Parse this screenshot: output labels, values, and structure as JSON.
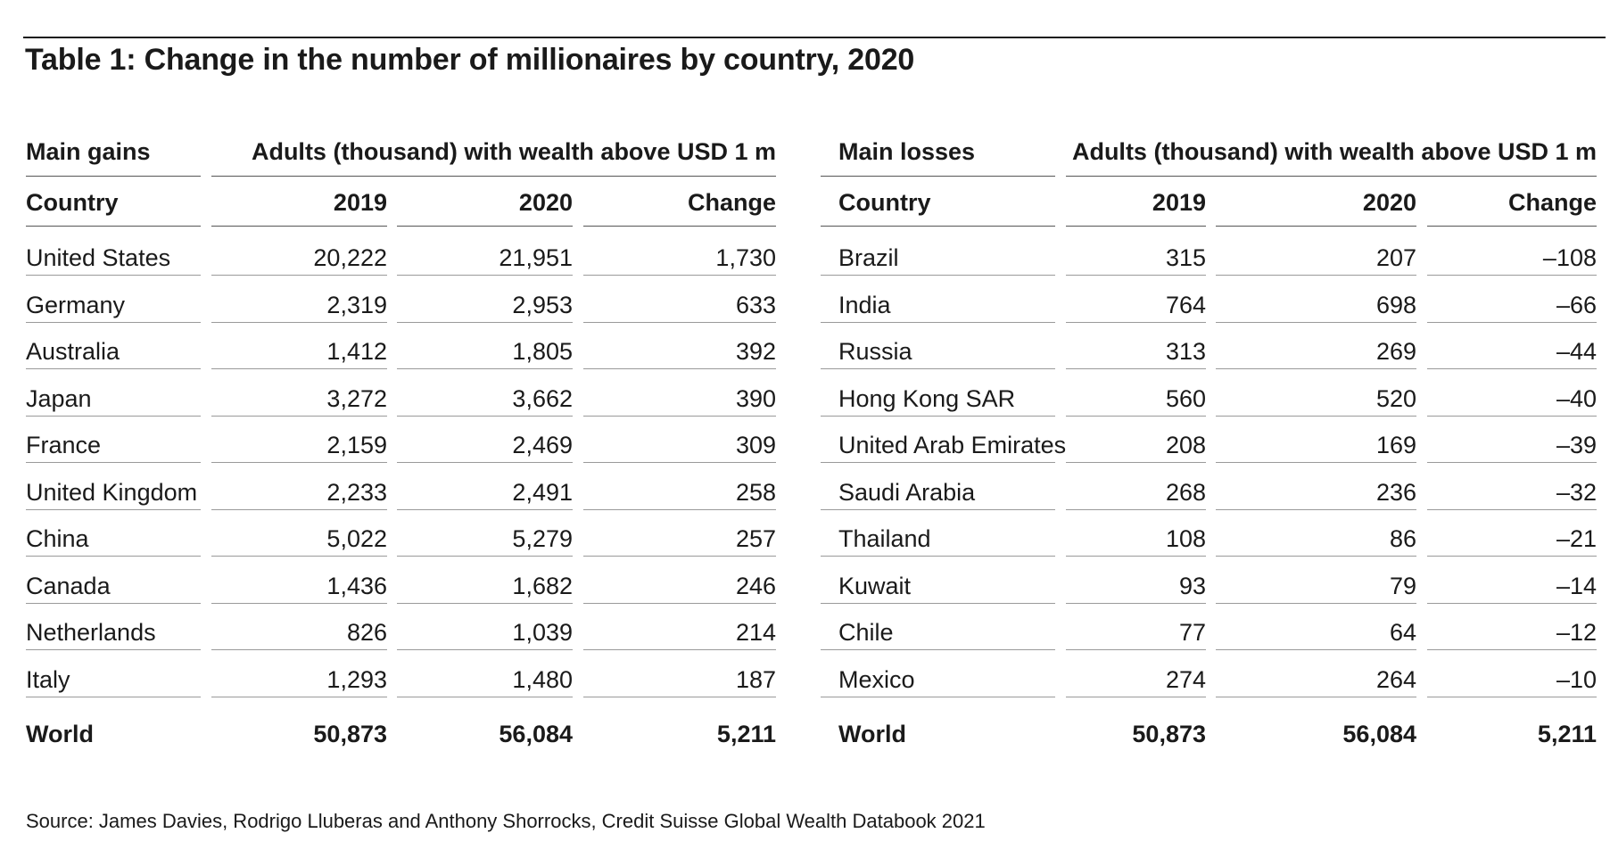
{
  "title": "Table 1: Change in the number of millionaires by country, 2020",
  "left": {
    "section_label": "Main gains",
    "group_header": "Adults (thousand) with wealth above USD 1 m",
    "col_country": "Country",
    "col_2019": "2019",
    "col_2020": "2020",
    "col_change": "Change",
    "rows": [
      {
        "country": "United States",
        "y2019": "20,222",
        "y2020": "21,951",
        "change": "1,730"
      },
      {
        "country": "Germany",
        "y2019": "2,319",
        "y2020": "2,953",
        "change": "633"
      },
      {
        "country": "Australia",
        "y2019": "1,412",
        "y2020": "1,805",
        "change": "392"
      },
      {
        "country": "Japan",
        "y2019": "3,272",
        "y2020": "3,662",
        "change": "390"
      },
      {
        "country": "France",
        "y2019": "2,159",
        "y2020": "2,469",
        "change": "309"
      },
      {
        "country": "United Kingdom",
        "y2019": "2,233",
        "y2020": "2,491",
        "change": "258"
      },
      {
        "country": "China",
        "y2019": "5,022",
        "y2020": "5,279",
        "change": "257"
      },
      {
        "country": "Canada",
        "y2019": "1,436",
        "y2020": "1,682",
        "change": "246"
      },
      {
        "country": "Netherlands",
        "y2019": "826",
        "y2020": "1,039",
        "change": "214"
      },
      {
        "country": "Italy",
        "y2019": "1,293",
        "y2020": "1,480",
        "change": "187"
      }
    ],
    "total": {
      "country": "World",
      "y2019": "50,873",
      "y2020": "56,084",
      "change": "5,211"
    }
  },
  "right": {
    "section_label": "Main losses",
    "group_header": "Adults (thousand) with wealth above USD 1 m",
    "col_country": "Country",
    "col_2019": "2019",
    "col_2020": "2020",
    "col_change": "Change",
    "rows": [
      {
        "country": "Brazil",
        "y2019": "315",
        "y2020": "207",
        "change": "–108"
      },
      {
        "country": "India",
        "y2019": "764",
        "y2020": "698",
        "change": "–66"
      },
      {
        "country": "Russia",
        "y2019": "313",
        "y2020": "269",
        "change": "–44"
      },
      {
        "country": "Hong Kong SAR",
        "y2019": "560",
        "y2020": "520",
        "change": "–40"
      },
      {
        "country": "United Arab Emirates",
        "y2019": "208",
        "y2020": "169",
        "change": "–39"
      },
      {
        "country": "Saudi Arabia",
        "y2019": "268",
        "y2020": "236",
        "change": "–32"
      },
      {
        "country": "Thailand",
        "y2019": "108",
        "y2020": "86",
        "change": "–21"
      },
      {
        "country": "Kuwait",
        "y2019": "93",
        "y2020": "79",
        "change": "–14"
      },
      {
        "country": "Chile",
        "y2019": "77",
        "y2020": "64",
        "change": "–12"
      },
      {
        "country": "Mexico",
        "y2019": "274",
        "y2020": "264",
        "change": "–10"
      }
    ],
    "total": {
      "country": "World",
      "y2019": "50,873",
      "y2020": "56,084",
      "change": "5,211"
    }
  },
  "source": "Source: James Davies, Rodrigo Lluberas and Anthony Shorrocks, Credit Suisse Global Wealth Databook 2021"
}
